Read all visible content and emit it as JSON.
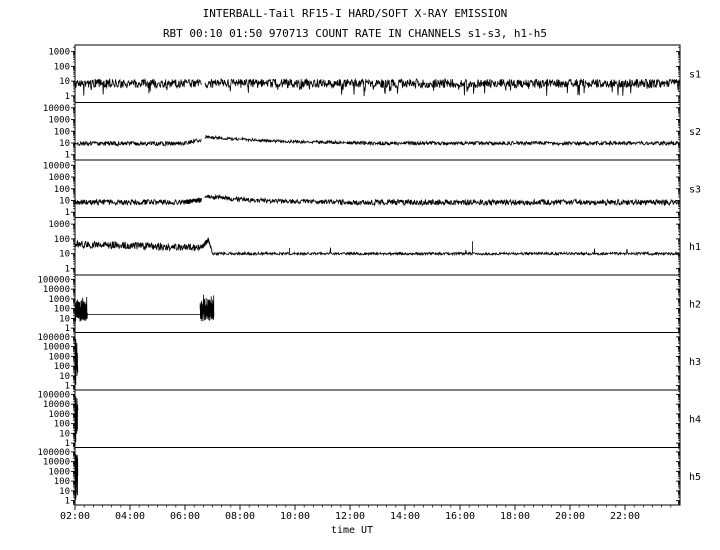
{
  "title": "INTERBALL-Tail RF15-I HARD/SOFT X-RAY EMISSION",
  "subtitle": "RBT 00:10 01:50 970713  COUNT RATE IN CHANNELS s1-s3, h1-h5",
  "xlabel": "time UT",
  "colors": {
    "trace": "#000000",
    "frame": "#000000",
    "background": "#ffffff"
  },
  "x_axis": {
    "t_start": 2,
    "t_end": 24,
    "tick_hours": [
      2,
      4,
      6,
      8,
      10,
      12,
      14,
      16,
      18,
      20,
      22
    ],
    "tick_labels": [
      "02:00",
      "04:00",
      "06:00",
      "08:00",
      "10:00",
      "12:00",
      "14:00",
      "16:00",
      "18:00",
      "20:00",
      "22:00"
    ],
    "minor_step_minutes": 20
  },
  "chart_data": [
    {
      "type": "line",
      "id": "s1",
      "label": "s1",
      "yticks": [
        1000,
        100,
        10,
        1
      ],
      "ylog_min": -0.45,
      "ylog_max": 3.45,
      "segments": [
        {
          "kind": "noisy",
          "t0": 2.0,
          "t1": 6.6,
          "v": 7,
          "noise": 0.3,
          "spike_prob": 0.04,
          "spike_mag": 0.5,
          "spike_dir": -1
        },
        {
          "kind": "noisy",
          "t0": 6.72,
          "t1": 23.97,
          "v": 7,
          "noise": 0.3,
          "spike_prob": 0.04,
          "spike_mag": 0.5,
          "spike_dir": -1
        }
      ],
      "spikes": []
    },
    {
      "type": "line",
      "id": "s2",
      "label": "s2",
      "yticks": [
        10000,
        1000,
        100,
        10,
        1
      ],
      "ylog_min": -0.45,
      "ylog_max": 4.45,
      "segments": [
        {
          "kind": "noisy",
          "t0": 2.0,
          "t1": 5.9,
          "v": 9,
          "noise": 0.18
        },
        {
          "kind": "ramp",
          "t0": 5.9,
          "t1": 6.6,
          "v0": 9,
          "v1": 19,
          "noise": 0.16
        },
        {
          "kind": "decay",
          "t0": 6.72,
          "t1": 12.5,
          "v0": 34,
          "v1": 10,
          "tau": 1.6,
          "noise": 0.13
        },
        {
          "kind": "noisy",
          "t0": 12.5,
          "t1": 23.97,
          "v": 9.5,
          "noise": 0.16
        }
      ],
      "spikes": []
    },
    {
      "type": "line",
      "id": "s3",
      "label": "s3",
      "yticks": [
        10000,
        1000,
        100,
        10,
        1
      ],
      "ylog_min": -0.45,
      "ylog_max": 4.45,
      "segments": [
        {
          "kind": "noisy",
          "t0": 2.0,
          "t1": 6.0,
          "v": 7,
          "noise": 0.24
        },
        {
          "kind": "ramp",
          "t0": 6.0,
          "t1": 6.6,
          "v0": 7,
          "v1": 12,
          "noise": 0.2
        },
        {
          "kind": "decay",
          "t0": 6.72,
          "t1": 11.5,
          "v0": 22,
          "v1": 7.5,
          "tau": 1.2,
          "noise": 0.2
        },
        {
          "kind": "noisy",
          "t0": 11.5,
          "t1": 23.97,
          "v": 7,
          "noise": 0.24
        }
      ],
      "spikes": []
    },
    {
      "type": "line",
      "id": "h1",
      "label": "h1",
      "yticks": [
        1000,
        100,
        10,
        1
      ],
      "ylog_min": -0.45,
      "ylog_max": 3.45,
      "segments": [
        {
          "kind": "decay",
          "t0": 2.0,
          "t1": 6.6,
          "v0": 45,
          "v1": 18,
          "tau": 4.0,
          "noise": 0.26
        },
        {
          "kind": "ramp",
          "t0": 6.6,
          "t1": 6.85,
          "v0": 25,
          "v1": 85,
          "noise": 0.18
        },
        {
          "kind": "ramp",
          "t0": 6.85,
          "t1": 7.0,
          "v0": 85,
          "v1": 12,
          "noise": 0.14
        },
        {
          "kind": "noisy",
          "t0": 7.0,
          "t1": 23.97,
          "v": 10,
          "noise": 0.09,
          "spike_prob": 0.006,
          "spike_mag": 0.45,
          "spike_dir": 1
        }
      ],
      "spikes": [
        {
          "t": 16.45,
          "v": 70
        },
        {
          "t": 9.8,
          "v": 24
        }
      ]
    },
    {
      "type": "line",
      "id": "h2",
      "label": "h2",
      "yticks": [
        100000,
        10000,
        1000,
        100,
        10,
        1
      ],
      "ylog_min": -0.45,
      "ylog_max": 5.45,
      "segments": [
        {
          "kind": "noisy",
          "t0": 2.0,
          "t1": 2.45,
          "v": 60,
          "noise": 1.1,
          "spike_prob": 0.1,
          "spike_mag": 0.5,
          "spike_dir": 1
        },
        {
          "kind": "flat",
          "t0": 2.45,
          "t1": 6.55,
          "v": 25
        },
        {
          "kind": "noisy",
          "t0": 6.55,
          "t1": 7.05,
          "v": 70,
          "noise": 1.15,
          "spike_prob": 0.15,
          "spike_mag": 0.55,
          "spike_dir": 1
        }
      ],
      "spikes": []
    },
    {
      "type": "line",
      "id": "h3",
      "label": "h3",
      "yticks": [
        100000,
        10000,
        1000,
        100,
        10,
        1
      ],
      "ylog_min": -0.45,
      "ylog_max": 5.45,
      "segments": [
        {
          "kind": "noisy",
          "t0": 2.0,
          "t1": 2.1,
          "v": 300,
          "noise": 2.2
        },
        {
          "kind": "vspike",
          "t": 2.03,
          "v0": 1.2,
          "v1": 60000
        }
      ],
      "spikes": []
    },
    {
      "type": "line",
      "id": "h4",
      "label": "h4",
      "yticks": [
        100000,
        10000,
        1000,
        100,
        10,
        1
      ],
      "ylog_min": -0.45,
      "ylog_max": 5.45,
      "segments": [
        {
          "kind": "noisy",
          "t0": 2.0,
          "t1": 2.1,
          "v": 300,
          "noise": 2.2
        },
        {
          "kind": "vspike",
          "t": 2.03,
          "v0": 1.2,
          "v1": 60000
        }
      ],
      "spikes": []
    },
    {
      "type": "line",
      "id": "h5",
      "label": "h5",
      "yticks": [
        100000,
        10000,
        1000,
        100,
        10,
        1
      ],
      "ylog_min": -0.45,
      "ylog_max": 5.45,
      "segments": [
        {
          "kind": "noisy",
          "t0": 2.0,
          "t1": 2.1,
          "v": 300,
          "noise": 2.2
        },
        {
          "kind": "vspike",
          "t": 2.03,
          "v0": 1.2,
          "v1": 60000
        }
      ],
      "spikes": []
    }
  ]
}
